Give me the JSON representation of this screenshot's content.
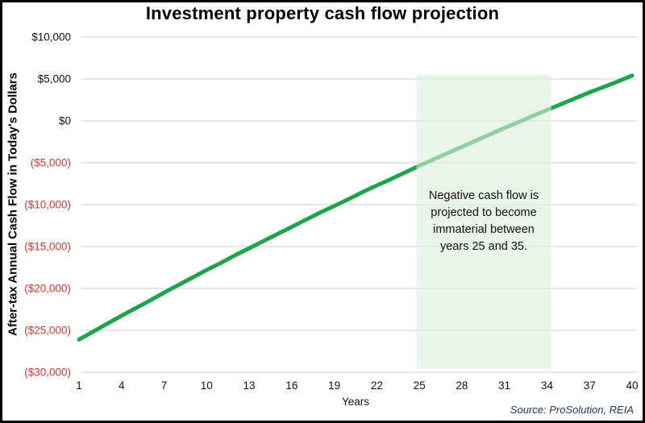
{
  "title": "Investment property cash flow projection",
  "source_note": "Source: ProSolution, REIA",
  "annotation": {
    "lines": [
      "Negative cash flow is",
      "projected to become",
      "immaterial between",
      "years 25 and 35."
    ]
  },
  "colors": {
    "line_green": "#1ea44b",
    "band_fill": "#daeeda",
    "band_opacity": 0.6,
    "grid": "#d9d9d9",
    "negative_label": "#e0362b",
    "label_text": "#111111",
    "source_text": "#1f3864",
    "border": "#000000"
  },
  "chart_data": {
    "type": "line",
    "title": "Investment property cash flow projection",
    "xlabel": "Years",
    "ylabel": "After-tax Annual Cash Flow in Today's Dollars",
    "xlim": [
      1,
      40
    ],
    "ylim": [
      -30000,
      10000
    ],
    "grid": "horizontal",
    "legend": "none",
    "x_ticks": [
      1,
      4,
      7,
      10,
      13,
      16,
      19,
      22,
      25,
      28,
      31,
      34,
      37,
      40
    ],
    "y_ticks": [
      {
        "label": "$10,000",
        "value": 10000
      },
      {
        "label": "$5,000",
        "value": 5000
      },
      {
        "label": "$0",
        "value": 0
      },
      {
        "label": "($5,000)",
        "value": -5000
      },
      {
        "label": "($10,000)",
        "value": -10000
      },
      {
        "label": "($15,000)",
        "value": -15000
      },
      {
        "label": "($20,000)",
        "value": -20000
      },
      {
        "label": "($25,000)",
        "value": -25000
      },
      {
        "label": "($30,000)",
        "value": -30000
      }
    ],
    "x": [
      1,
      2,
      3,
      4,
      5,
      6,
      7,
      8,
      9,
      10,
      11,
      12,
      13,
      14,
      15,
      16,
      17,
      18,
      19,
      20,
      21,
      22,
      23,
      24,
      25,
      26,
      27,
      28,
      29,
      30,
      31,
      32,
      33,
      34,
      35,
      36,
      37,
      38,
      39,
      40
    ],
    "series": [
      {
        "name": "After-tax annual cash flow (today's dollars)",
        "values": [
          -26100,
          -25150,
          -24200,
          -23250,
          -22350,
          -21450,
          -20500,
          -19600,
          -18700,
          -17800,
          -16950,
          -16050,
          -15200,
          -14350,
          -13500,
          -12650,
          -11800,
          -10950,
          -10150,
          -9350,
          -8500,
          -7700,
          -6950,
          -6150,
          -5350,
          -4600,
          -3850,
          -3100,
          -2350,
          -1600,
          -850,
          -150,
          600,
          1300,
          2000,
          2700,
          3400,
          4050,
          4700,
          5400
        ]
      }
    ],
    "shaded_region": {
      "year_start": 24.8,
      "year_end": 34.3,
      "value_top": 5500,
      "value_bottom": -29600
    }
  }
}
